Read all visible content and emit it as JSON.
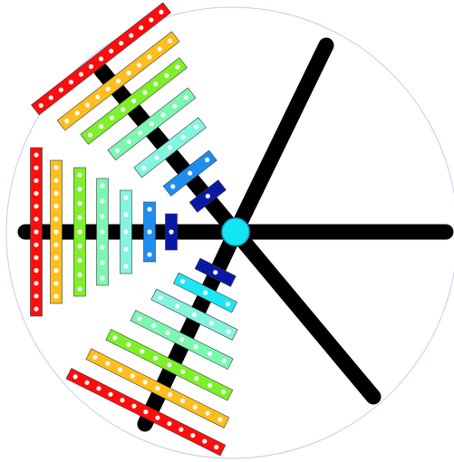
{
  "colors": {
    "background": "#ffffff",
    "circle_outline": "#c8c8f0",
    "spoke": "#000000",
    "hub": "#13e6f2",
    "hub_outline": "#0aa6c8",
    "hole": "#ffffff",
    "bar_outline": "#3a3a3a"
  },
  "spokes": [
    {
      "name": "spoke-upper-left"
    },
    {
      "name": "spoke-left"
    },
    {
      "name": "spoke-lower-left"
    },
    {
      "name": "spoke-upper-right"
    },
    {
      "name": "spoke-right"
    },
    {
      "name": "spoke-lower-right"
    }
  ],
  "bar_groups": [
    {
      "name": "upper-left-bar-fan",
      "bars": [
        {
          "color": "#ff0d0d",
          "holes": 13
        },
        {
          "color": "#ffbe1e",
          "holes": 11
        },
        {
          "color": "#7cf02a",
          "holes": 9
        },
        {
          "color": "#7af7b0",
          "holes": 7
        },
        {
          "color": "#82f4e0",
          "holes": 5
        },
        {
          "color": "#1e8df0",
          "holes": 3
        },
        {
          "color": "#0b18a6",
          "holes": 1
        }
      ]
    },
    {
      "name": "left-bar-fan",
      "bars": [
        {
          "color": "#ff0d0d",
          "holes": 13
        },
        {
          "color": "#ffbe1e",
          "holes": 11
        },
        {
          "color": "#7cf02a",
          "holes": 9
        },
        {
          "color": "#7af7b0",
          "holes": 7
        },
        {
          "color": "#82f4e0",
          "holes": 5
        },
        {
          "color": "#1e8df0",
          "holes": 3
        },
        {
          "color": "#0b18a6",
          "holes": 1
        }
      ]
    },
    {
      "name": "lower-left-bar-fan",
      "bars": [
        {
          "color": "#ff0d0d",
          "holes": 13
        },
        {
          "color": "#ffbe1e",
          "holes": 11
        },
        {
          "color": "#7cf02a",
          "holes": 9
        },
        {
          "color": "#7af7b0",
          "holes": 7
        },
        {
          "color": "#82f4e0",
          "holes": 5
        },
        {
          "color": "#1ee6f2",
          "holes": 3
        },
        {
          "color": "#0b18a6",
          "holes": 1
        }
      ]
    }
  ]
}
